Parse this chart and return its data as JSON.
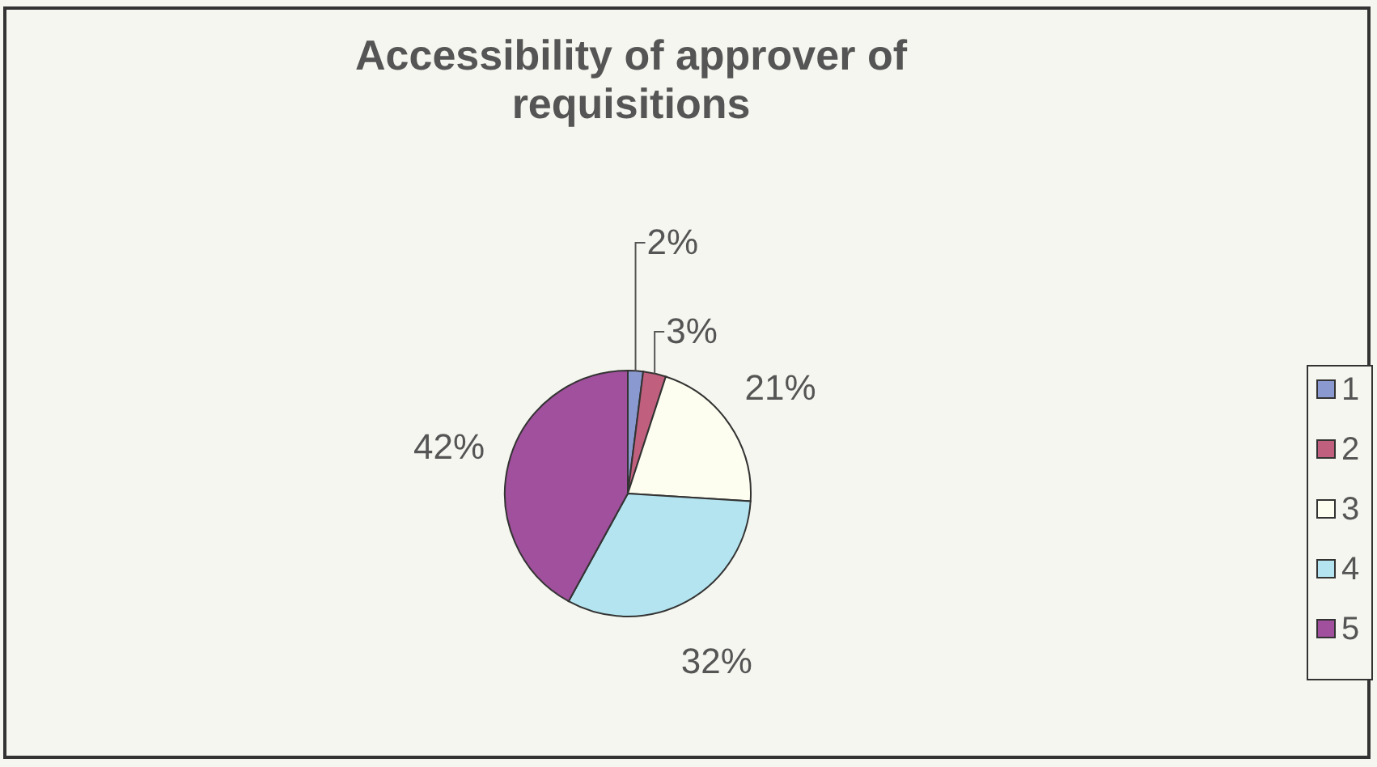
{
  "chart_data": {
    "type": "pie",
    "title": "Accessibility of approver of requisitions",
    "categories": [
      "1",
      "2",
      "3",
      "4",
      "5"
    ],
    "values": [
      2,
      3,
      21,
      32,
      42
    ],
    "colors": [
      "#8a9ad0",
      "#c0607e",
      "#fdfdf0",
      "#b4e4f0",
      "#a0509c"
    ],
    "value_labels": [
      "2%",
      "3%",
      "21%",
      "32%",
      "42%"
    ],
    "legend": "right"
  }
}
